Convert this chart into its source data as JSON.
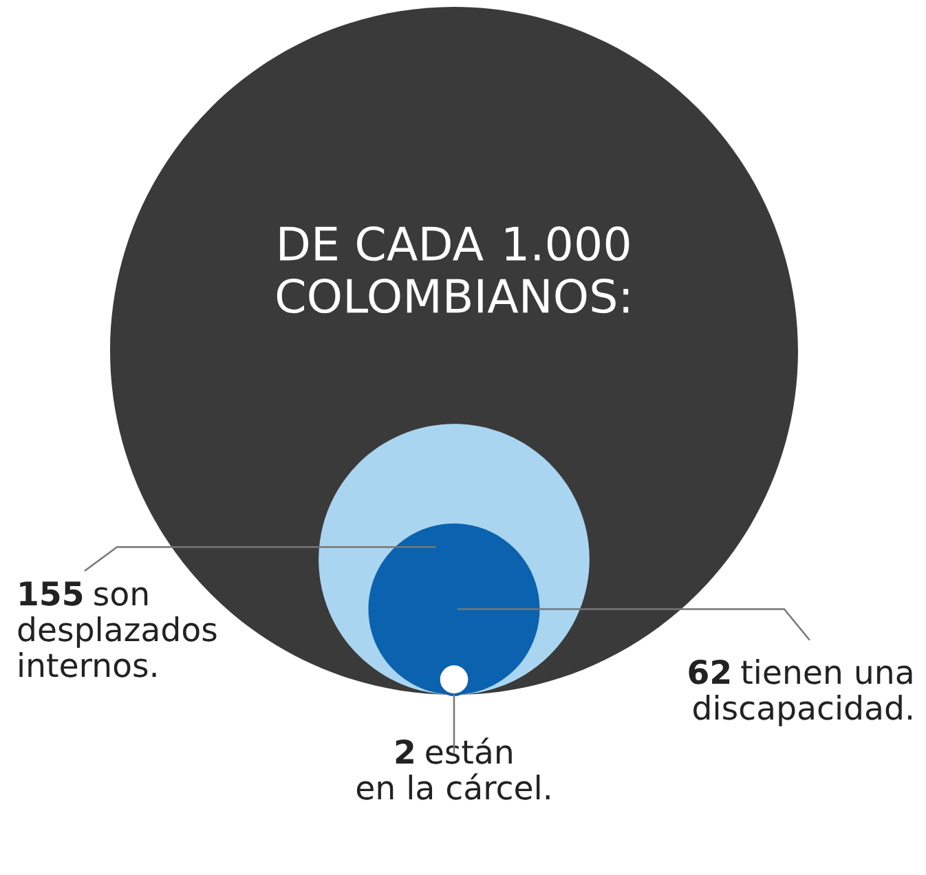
{
  "chart_data": {
    "type": "other",
    "title": "DE CADA",
    "subtitle": "COLOMBIANOS:",
    "categories": [
      null,
      "son\ndesplazados\ninternos.",
      "tienen una\ndiscapacidad.",
      "están\nen la cárcel."
    ],
    "values": [
      1000,
      155,
      62,
      2
    ],
    "value_labels": [
      "1.000",
      "155",
      "62",
      "2"
    ],
    "colors": [
      "#3a3a3a",
      "#a9d5f0",
      "#0b62ae",
      "#ffffff"
    ]
  }
}
